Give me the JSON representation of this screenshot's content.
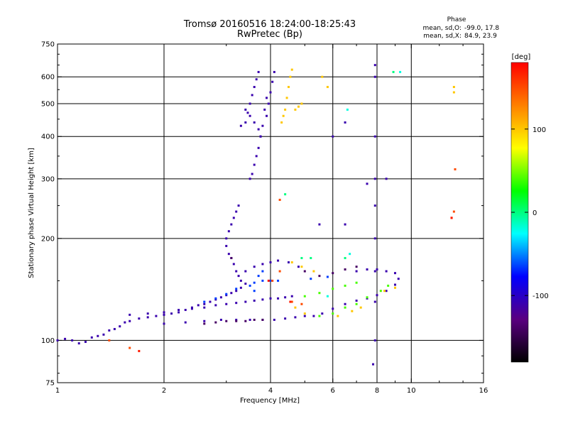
{
  "chart_data": {
    "type": "scatter",
    "title": "Tromsø 20160516 18:24:00-18:25:43",
    "subtitle": "RwPretec (Bp)",
    "xlabel": "Frequency [MHz]",
    "ylabel": "Stationary phase Virtual Height [km]",
    "x_scale": "log2",
    "y_scale": "log",
    "xlim": [
      1,
      16
    ],
    "ylim": [
      75,
      750
    ],
    "x_ticks": [
      1,
      2,
      4,
      6,
      8,
      10,
      16
    ],
    "x_tick_labels": [
      "1",
      "2",
      "4",
      "6",
      "8",
      "10",
      "16"
    ],
    "x_gridlines": [
      2,
      4,
      6,
      8,
      10
    ],
    "y_ticks": [
      75,
      100,
      200,
      300,
      400,
      500,
      600,
      750
    ],
    "y_tick_labels": [
      "75",
      "100",
      "200",
      "300",
      "400",
      "500",
      "600",
      "750"
    ],
    "y_gridlines": [
      100,
      200,
      300,
      400,
      500,
      600
    ],
    "grid": true,
    "stats": {
      "heading": "Phase",
      "o_label": "mean, sd,O:",
      "o_mean": -99.0,
      "o_sd": 17.8,
      "o_text": "-99.0, 17.8",
      "x_label": "mean, sd,X:",
      "x_mean": 84.9,
      "x_sd": 23.9,
      "x_text": "84.9, 23.9"
    },
    "colorbar": {
      "label": "[deg]",
      "min": -180,
      "max": 180,
      "ticks": [
        100,
        0,
        -100
      ],
      "tick_labels": [
        "100",
        "0",
        "-100"
      ],
      "colors": [
        "#000000",
        "#5a0080",
        "#0000ff",
        "#00ffff",
        "#00ff00",
        "#ffff00",
        "#ff8000",
        "#ff0000"
      ]
    },
    "series": [
      {
        "phase_deg": -110,
        "points": [
          [
            1.0,
            100
          ],
          [
            1.05,
            101
          ],
          [
            1.1,
            100
          ],
          [
            1.15,
            98
          ],
          [
            1.2,
            99
          ],
          [
            1.25,
            102
          ],
          [
            1.3,
            103
          ],
          [
            1.35,
            104
          ],
          [
            1.4,
            107
          ],
          [
            1.45,
            108
          ],
          [
            1.5,
            110
          ],
          [
            1.55,
            113
          ],
          [
            1.6,
            114
          ],
          [
            1.7,
            116
          ],
          [
            1.8,
            117
          ],
          [
            1.9,
            118
          ],
          [
            2.0,
            119
          ],
          [
            2.1,
            120
          ],
          [
            2.2,
            121
          ],
          [
            2.3,
            123
          ],
          [
            2.4,
            125
          ],
          [
            2.5,
            127
          ],
          [
            2.6,
            128
          ],
          [
            2.7,
            130
          ],
          [
            2.8,
            132
          ],
          [
            2.9,
            134
          ],
          [
            3.0,
            136
          ],
          [
            3.1,
            138
          ],
          [
            3.2,
            140
          ],
          [
            3.3,
            143
          ],
          [
            3.4,
            147
          ],
          [
            1.6,
            119
          ],
          [
            1.8,
            120
          ],
          [
            2.0,
            121
          ],
          [
            2.2,
            123
          ],
          [
            2.4,
            124
          ],
          [
            2.6,
            125
          ],
          [
            2.8,
            127
          ],
          [
            3.0,
            128
          ],
          [
            3.2,
            129
          ],
          [
            3.4,
            130
          ],
          [
            3.6,
            131
          ],
          [
            3.8,
            132
          ],
          [
            4.0,
            133
          ],
          [
            4.2,
            133
          ],
          [
            4.4,
            134
          ],
          [
            4.6,
            135
          ],
          [
            2.0,
            112
          ],
          [
            2.3,
            113
          ],
          [
            2.6,
            114
          ],
          [
            2.9,
            115
          ],
          [
            3.2,
            115
          ],
          [
            3.5,
            115
          ],
          [
            3.8,
            115
          ],
          [
            4.1,
            115
          ],
          [
            4.4,
            116
          ],
          [
            4.7,
            117
          ],
          [
            5.0,
            118
          ],
          [
            5.3,
            118
          ],
          [
            5.6,
            120
          ],
          [
            6.0,
            124
          ],
          [
            6.5,
            128
          ],
          [
            7.0,
            131
          ],
          [
            7.5,
            133
          ],
          [
            8.0,
            136
          ],
          [
            8.5,
            140
          ],
          [
            9.0,
            146
          ],
          [
            9.2,
            152
          ],
          [
            3.0,
            200
          ],
          [
            3.05,
            210
          ],
          [
            3.1,
            220
          ],
          [
            3.15,
            230
          ],
          [
            3.2,
            240
          ],
          [
            3.25,
            250
          ],
          [
            3.0,
            190
          ],
          [
            3.05,
            180
          ],
          [
            3.1,
            175
          ],
          [
            3.15,
            168
          ],
          [
            3.2,
            160
          ],
          [
            3.25,
            155
          ],
          [
            3.3,
            150
          ],
          [
            3.3,
            430
          ],
          [
            3.4,
            440
          ],
          [
            3.45,
            470
          ],
          [
            3.5,
            500
          ],
          [
            3.55,
            530
          ],
          [
            3.6,
            560
          ],
          [
            3.65,
            590
          ],
          [
            3.7,
            620
          ],
          [
            3.5,
            300
          ],
          [
            3.55,
            310
          ],
          [
            3.6,
            330
          ],
          [
            3.65,
            350
          ],
          [
            3.7,
            370
          ],
          [
            3.75,
            400
          ],
          [
            3.8,
            430
          ],
          [
            3.9,
            460
          ],
          [
            3.95,
            500
          ],
          [
            4.0,
            540
          ],
          [
            4.05,
            580
          ],
          [
            4.1,
            620
          ],
          [
            3.85,
            480
          ],
          [
            3.9,
            520
          ],
          [
            3.4,
            480
          ],
          [
            3.5,
            460
          ],
          [
            3.6,
            440
          ],
          [
            3.7,
            420
          ],
          [
            3.75,
            400
          ],
          [
            3.4,
            160
          ],
          [
            3.6,
            165
          ],
          [
            3.8,
            168
          ],
          [
            4.0,
            170
          ],
          [
            4.2,
            172
          ],
          [
            4.5,
            170
          ],
          [
            4.8,
            165
          ],
          [
            7.0,
            160
          ],
          [
            7.5,
            162
          ],
          [
            8.0,
            162
          ],
          [
            8.5,
            160
          ],
          [
            9.0,
            158
          ],
          [
            6.0,
            400
          ],
          [
            6.5,
            440
          ],
          [
            7.9,
            650
          ],
          [
            7.9,
            600
          ],
          [
            7.9,
            400
          ],
          [
            7.9,
            300
          ],
          [
            7.9,
            250
          ],
          [
            7.9,
            200
          ],
          [
            7.9,
            160
          ],
          [
            7.9,
            130
          ],
          [
            7.9,
            100
          ],
          [
            7.8,
            85
          ],
          [
            8.5,
            300
          ],
          [
            7.5,
            290
          ],
          [
            6.5,
            220
          ],
          [
            5.5,
            220
          ]
        ]
      },
      {
        "phase_deg": -65,
        "points": [
          [
            2.6,
            130
          ],
          [
            2.8,
            133
          ],
          [
            3.0,
            137
          ],
          [
            3.2,
            142
          ],
          [
            3.6,
            148
          ],
          [
            3.8,
            150
          ],
          [
            4.0,
            150
          ],
          [
            3.5,
            145
          ],
          [
            3.6,
            140
          ],
          [
            3.7,
            155
          ],
          [
            3.8,
            160
          ],
          [
            4.2,
            150
          ],
          [
            5.2,
            152
          ],
          [
            5.8,
            154
          ]
        ]
      },
      {
        "phase_deg": -140,
        "points": [
          [
            3.0,
            114
          ],
          [
            3.2,
            114
          ],
          [
            3.4,
            114
          ],
          [
            3.6,
            115
          ],
          [
            3.8,
            115
          ],
          [
            2.6,
            112
          ],
          [
            2.8,
            113
          ],
          [
            5.5,
            155
          ],
          [
            6.0,
            158
          ],
          [
            6.5,
            162
          ],
          [
            7.0,
            165
          ],
          [
            5.0,
            160
          ],
          [
            3.1,
            175
          ]
        ]
      },
      {
        "phase_deg": 40,
        "points": [
          [
            5.0,
            135
          ],
          [
            5.5,
            138
          ],
          [
            6.0,
            142
          ],
          [
            6.5,
            145
          ],
          [
            7.0,
            148
          ],
          [
            5.5,
            118
          ],
          [
            6.0,
            120
          ],
          [
            6.5,
            125
          ],
          [
            7.0,
            128
          ],
          [
            7.5,
            134
          ],
          [
            8.2,
            140
          ],
          [
            8.6,
            145
          ]
        ]
      },
      {
        "phase_deg": 100,
        "points": [
          [
            4.3,
            440
          ],
          [
            4.35,
            460
          ],
          [
            4.4,
            480
          ],
          [
            4.45,
            520
          ],
          [
            4.5,
            560
          ],
          [
            4.55,
            600
          ],
          [
            4.6,
            630
          ],
          [
            4.9,
            500
          ],
          [
            4.8,
            490
          ],
          [
            4.7,
            480
          ],
          [
            5.6,
            600
          ],
          [
            5.8,
            560
          ],
          [
            4.6,
            170
          ],
          [
            4.9,
            165
          ],
          [
            5.3,
            160
          ],
          [
            4.7,
            125
          ],
          [
            5.0,
            120
          ],
          [
            6.2,
            118
          ],
          [
            6.8,
            122
          ],
          [
            7.2,
            125
          ],
          [
            8.4,
            140
          ],
          [
            9.0,
            143
          ],
          [
            13.2,
            560
          ],
          [
            13.2,
            540
          ]
        ]
      },
      {
        "phase_deg": 150,
        "points": [
          [
            4.6,
            130
          ],
          [
            4.9,
            128
          ],
          [
            4.25,
            260
          ],
          [
            4.05,
            150
          ],
          [
            4.25,
            160
          ],
          [
            13.0,
            230
          ],
          [
            13.2,
            240
          ],
          [
            13.3,
            320
          ],
          [
            1.4,
            100
          ],
          [
            1.6,
            95
          ]
        ]
      },
      {
        "phase_deg": 170,
        "points": [
          [
            1.7,
            93
          ],
          [
            3.95,
            150
          ],
          [
            4.55,
            130
          ],
          [
            13.0,
            230
          ]
        ]
      },
      {
        "phase_deg": 0,
        "points": [
          [
            4.4,
            270
          ],
          [
            5.2,
            175
          ],
          [
            8.9,
            620
          ],
          [
            4.9,
            175
          ],
          [
            6.5,
            175
          ]
        ]
      },
      {
        "phase_deg": -20,
        "points": [
          [
            6.6,
            480
          ],
          [
            6.7,
            180
          ],
          [
            9.3,
            620
          ],
          [
            5.8,
            135
          ]
        ]
      }
    ]
  }
}
